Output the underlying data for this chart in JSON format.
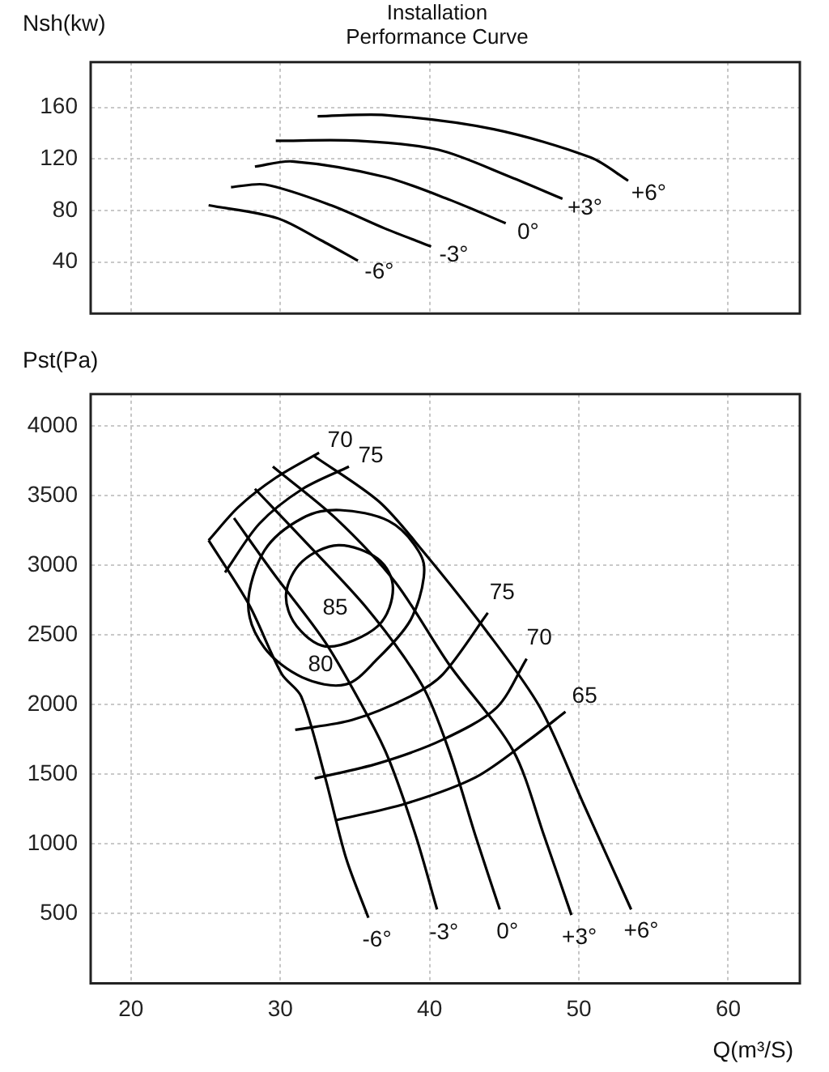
{
  "chart_data": [
    {
      "type": "line",
      "title": "Installation Performance Curve",
      "ylabel": "Nsh(kw)",
      "xlim": [
        17.3,
        64.8
      ],
      "ylim": [
        0,
        195
      ],
      "xticks": [
        20,
        30,
        40,
        50,
        60
      ],
      "yticks": [
        40,
        80,
        120,
        160
      ],
      "tick_labels": "y",
      "grid": true,
      "series": [
        {
          "name": "-6°",
          "color": "#000000",
          "x": [
            25.2,
            29.8,
            32.7,
            35.2
          ],
          "values": [
            84,
            74,
            57,
            41
          ]
        },
        {
          "name": "-3°",
          "color": "#000000",
          "x": [
            26.7,
            29.0,
            33.4,
            37.0,
            40.1
          ],
          "values": [
            98,
            100,
            84,
            66,
            52
          ]
        },
        {
          "name": "0°",
          "color": "#000000",
          "x": [
            28.3,
            30.8,
            37.0,
            41.4,
            45.1
          ],
          "values": [
            114,
            118,
            106,
            88,
            70
          ]
        },
        {
          "name": "+3°",
          "color": "#000000",
          "x": [
            29.7,
            35.2,
            40.6,
            45.4,
            48.9
          ],
          "values": [
            134,
            134,
            127,
            106,
            89
          ]
        },
        {
          "name": "+6°",
          "color": "#000000",
          "x": [
            32.5,
            37.0,
            44.3,
            50.8,
            53.3
          ],
          "values": [
            153,
            154,
            143,
            121,
            103
          ]
        }
      ]
    },
    {
      "type": "line",
      "ylabel": "Pst(Pa)",
      "xlabel": "Q(m³/S)",
      "xlim": [
        17.3,
        64.8
      ],
      "ylim": [
        0,
        4230
      ],
      "xticks": [
        20,
        30,
        40,
        50,
        60
      ],
      "yticks": [
        500,
        1000,
        1500,
        2000,
        2500,
        3000,
        3500,
        4000
      ],
      "grid": true,
      "series": [
        {
          "name": "-6°",
          "color": "#000000",
          "x": [
            25.2,
            27.9,
            30.1,
            31.4,
            33.0,
            34.4,
            35.9
          ],
          "values": [
            3180,
            2720,
            2220,
            2060,
            1480,
            900,
            470
          ]
        },
        {
          "name": "-3°",
          "color": "#000000",
          "x": [
            26.9,
            29.5,
            33.0,
            35.9,
            37.3,
            39.1,
            40.5
          ],
          "values": [
            3340,
            2950,
            2450,
            1910,
            1600,
            1050,
            530
          ]
        },
        {
          "name": "0°",
          "color": "#000000",
          "x": [
            28.3,
            31.5,
            35.9,
            39.5,
            41.3,
            43.1,
            44.7
          ],
          "values": [
            3550,
            3190,
            2680,
            2140,
            1670,
            1050,
            530
          ]
        },
        {
          "name": "+3°",
          "color": "#000000",
          "x": [
            29.5,
            33.7,
            37.7,
            41.3,
            45.6,
            47.7,
            49.5
          ],
          "values": [
            3710,
            3340,
            2880,
            2290,
            1670,
            1050,
            490
          ]
        },
        {
          "name": "+6°",
          "color": "#000000",
          "x": [
            32.2,
            36.6,
            39.5,
            43.8,
            47.4,
            50.3,
            53.5
          ],
          "values": [
            3790,
            3460,
            3110,
            2530,
            1980,
            1290,
            530
          ]
        },
        {
          "name": "75",
          "color": "#000000",
          "x": [
            26.3,
            28.6,
            31.5,
            34.6
          ],
          "values": [
            2950,
            3300,
            3550,
            3710
          ]
        },
        {
          "name": "70",
          "color": "#000000",
          "x": [
            25.2,
            27.2,
            29.7,
            32.6
          ],
          "values": [
            3180,
            3420,
            3630,
            3810
          ]
        },
        {
          "name": "75",
          "color": "#000000",
          "x": [
            31.0,
            34.8,
            38.7,
            40.9,
            43.9
          ],
          "values": [
            1820,
            1890,
            2060,
            2220,
            2660
          ]
        },
        {
          "name": "70",
          "color": "#000000",
          "x": [
            32.3,
            36.6,
            40.9,
            44.5,
            46.5
          ],
          "values": [
            1470,
            1580,
            1750,
            1980,
            2330
          ]
        },
        {
          "name": "65",
          "color": "#000000",
          "x": [
            33.7,
            38.4,
            43.1,
            46.7,
            49.1
          ],
          "values": [
            1170,
            1290,
            1480,
            1750,
            1950
          ]
        }
      ],
      "annotations": [
        "85",
        "80"
      ]
    }
  ]
}
